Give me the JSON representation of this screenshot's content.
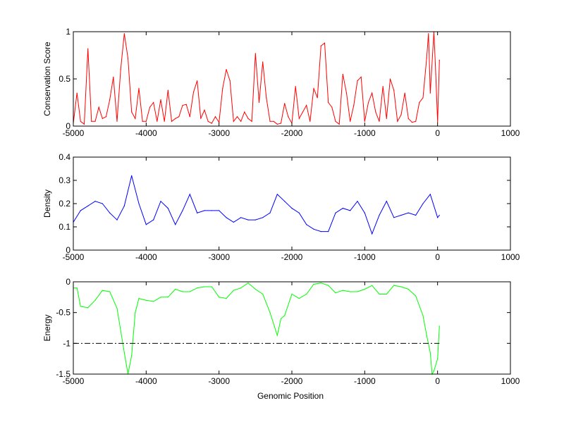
{
  "chart_data": [
    {
      "type": "line",
      "title": "",
      "xlabel": "",
      "ylabel": "Conservation Score",
      "xlim": [
        -5000,
        1000
      ],
      "ylim": [
        0,
        1
      ],
      "xticks": [
        -5000,
        -4000,
        -3000,
        -2000,
        -1000,
        0,
        1000
      ],
      "xtick_labels": [
        "-5000",
        "-4000",
        "-3000",
        "-2000",
        "-1000",
        "0",
        "1000"
      ],
      "yticks": [
        0,
        0.5,
        1
      ],
      "ytick_labels": [
        "0",
        "0.5",
        "1"
      ],
      "grid": false,
      "color": "#ff0000",
      "x": [
        -5000,
        -4950,
        -4900,
        -4850,
        -4800,
        -4750,
        -4700,
        -4650,
        -4600,
        -4550,
        -4500,
        -4450,
        -4400,
        -4350,
        -4300,
        -4250,
        -4200,
        -4150,
        -4100,
        -4050,
        -4000,
        -3950,
        -3900,
        -3850,
        -3800,
        -3750,
        -3700,
        -3650,
        -3600,
        -3550,
        -3500,
        -3450,
        -3400,
        -3350,
        -3300,
        -3250,
        -3200,
        -3150,
        -3100,
        -3050,
        -3000,
        -2950,
        -2900,
        -2850,
        -2800,
        -2750,
        -2700,
        -2650,
        -2600,
        -2550,
        -2500,
        -2450,
        -2400,
        -2350,
        -2300,
        -2250,
        -2200,
        -2150,
        -2100,
        -2050,
        -2000,
        -1950,
        -1900,
        -1850,
        -1800,
        -1750,
        -1700,
        -1650,
        -1600,
        -1550,
        -1500,
        -1450,
        -1400,
        -1350,
        -1300,
        -1250,
        -1200,
        -1150,
        -1100,
        -1050,
        -1000,
        -950,
        -900,
        -850,
        -800,
        -750,
        -700,
        -650,
        -600,
        -550,
        -500,
        -450,
        -400,
        -350,
        -300,
        -250,
        -200,
        -150,
        -125,
        -100,
        -50,
        -25,
        0,
        25
      ],
      "values": [
        0.03,
        0.35,
        0.05,
        0.02,
        0.82,
        0.05,
        0.05,
        0.2,
        0.08,
        0.1,
        0.28,
        0.52,
        0.05,
        0.6,
        0.98,
        0.72,
        0.15,
        0.08,
        0.4,
        0.05,
        0.05,
        0.2,
        0.25,
        0.05,
        0.28,
        0.05,
        0.38,
        0.05,
        0.08,
        0.1,
        0.22,
        0.23,
        0.1,
        0.36,
        0.48,
        0.08,
        0.17,
        0.05,
        0.03,
        0.1,
        0.04,
        0.4,
        0.6,
        0.48,
        0.05,
        0.1,
        0.05,
        0.15,
        0.08,
        0.05,
        0.77,
        0.25,
        0.68,
        0.3,
        0.05,
        0.05,
        0.02,
        0.03,
        0.24,
        0.1,
        0.03,
        0.42,
        0.08,
        0.15,
        0.22,
        0.05,
        0.4,
        0.3,
        0.85,
        0.88,
        0.25,
        0.2,
        0.05,
        0.02,
        0.55,
        0.35,
        0.05,
        0.22,
        0.48,
        0.52,
        0.05,
        0.25,
        0.35,
        0.15,
        0.05,
        0.42,
        0.08,
        0.5,
        0.38,
        0.05,
        0.12,
        0.35,
        0.08,
        0.04,
        0.05,
        0.25,
        0.3,
        0.72,
        0.98,
        0.35,
        1.0,
        0.55,
        0.04,
        0.7
      ]
    },
    {
      "type": "line",
      "title": "",
      "xlabel": "",
      "ylabel": "Density",
      "xlim": [
        -5000,
        1000
      ],
      "ylim": [
        0,
        0.4
      ],
      "xticks": [
        -5000,
        -4000,
        -3000,
        -2000,
        -1000,
        0,
        1000
      ],
      "xtick_labels": [
        "-5000",
        "-4000",
        "-3000",
        "-2000",
        "-1000",
        "0",
        "1000"
      ],
      "yticks": [
        0,
        0.1,
        0.2,
        0.3,
        0.4
      ],
      "ytick_labels": [
        "0",
        "0.1",
        "0.2",
        "0.3",
        "0.4"
      ],
      "grid": false,
      "color": "#0000ff",
      "x": [
        -5000,
        -4900,
        -4800,
        -4700,
        -4600,
        -4500,
        -4400,
        -4300,
        -4200,
        -4100,
        -4000,
        -3900,
        -3800,
        -3700,
        -3600,
        -3500,
        -3400,
        -3300,
        -3200,
        -3100,
        -3000,
        -2900,
        -2800,
        -2700,
        -2600,
        -2500,
        -2400,
        -2300,
        -2200,
        -2100,
        -2000,
        -1900,
        -1800,
        -1700,
        -1600,
        -1500,
        -1400,
        -1300,
        -1200,
        -1100,
        -1000,
        -900,
        -800,
        -700,
        -600,
        -500,
        -400,
        -300,
        -200,
        -100,
        0,
        25
      ],
      "values": [
        0.12,
        0.17,
        0.19,
        0.21,
        0.2,
        0.16,
        0.13,
        0.19,
        0.32,
        0.2,
        0.11,
        0.13,
        0.21,
        0.18,
        0.11,
        0.17,
        0.24,
        0.16,
        0.17,
        0.17,
        0.17,
        0.14,
        0.12,
        0.14,
        0.13,
        0.13,
        0.14,
        0.16,
        0.24,
        0.21,
        0.18,
        0.16,
        0.11,
        0.09,
        0.08,
        0.08,
        0.16,
        0.18,
        0.17,
        0.21,
        0.16,
        0.07,
        0.15,
        0.21,
        0.14,
        0.15,
        0.16,
        0.15,
        0.2,
        0.24,
        0.14,
        0.15
      ]
    },
    {
      "type": "line",
      "title": "",
      "xlabel": "Genomic Position",
      "ylabel": "Energy",
      "xlim": [
        -5000,
        1000
      ],
      "ylim": [
        -1.5,
        0
      ],
      "xticks": [
        -5000,
        -4000,
        -3000,
        -2000,
        -1000,
        0,
        1000
      ],
      "xtick_labels": [
        "-5000",
        "-4000",
        "-3000",
        "-2000",
        "-1000",
        "0",
        "1000"
      ],
      "yticks": [
        -1.5,
        -1,
        -0.5,
        0
      ],
      "ytick_labels": [
        "-1.5",
        "-1",
        "-0.5",
        "0"
      ],
      "grid": false,
      "color": "#00ff00",
      "reference_line": {
        "y": -1,
        "style": "dash-dot",
        "color": "#000000"
      },
      "x": [
        -5000,
        -4950,
        -4900,
        -4800,
        -4700,
        -4600,
        -4500,
        -4400,
        -4300,
        -4250,
        -4200,
        -4150,
        -4100,
        -4000,
        -3900,
        -3800,
        -3700,
        -3600,
        -3500,
        -3400,
        -3300,
        -3200,
        -3100,
        -3000,
        -2900,
        -2800,
        -2700,
        -2600,
        -2500,
        -2400,
        -2300,
        -2200,
        -2150,
        -2100,
        -2000,
        -1900,
        -1800,
        -1700,
        -1600,
        -1500,
        -1400,
        -1300,
        -1200,
        -1100,
        -1000,
        -900,
        -800,
        -700,
        -600,
        -500,
        -400,
        -300,
        -200,
        -150,
        -100,
        -75,
        -50,
        0,
        25
      ],
      "values": [
        -0.1,
        -0.1,
        -0.4,
        -0.42,
        -0.3,
        -0.14,
        -0.16,
        -0.43,
        -1.15,
        -1.5,
        -1.2,
        -0.5,
        -0.27,
        -0.3,
        -0.32,
        -0.25,
        -0.25,
        -0.12,
        -0.16,
        -0.16,
        -0.1,
        -0.08,
        -0.08,
        -0.25,
        -0.27,
        -0.14,
        -0.1,
        -0.02,
        -0.12,
        -0.2,
        -0.5,
        -0.87,
        -0.6,
        -0.55,
        -0.2,
        -0.27,
        -0.2,
        -0.04,
        -0.02,
        -0.06,
        -0.18,
        -0.14,
        -0.16,
        -0.16,
        -0.12,
        -0.06,
        -0.2,
        -0.2,
        -0.06,
        -0.08,
        -0.12,
        -0.23,
        -0.55,
        -0.87,
        -1.15,
        -1.5,
        -1.45,
        -1.25,
        -0.72
      ]
    }
  ]
}
